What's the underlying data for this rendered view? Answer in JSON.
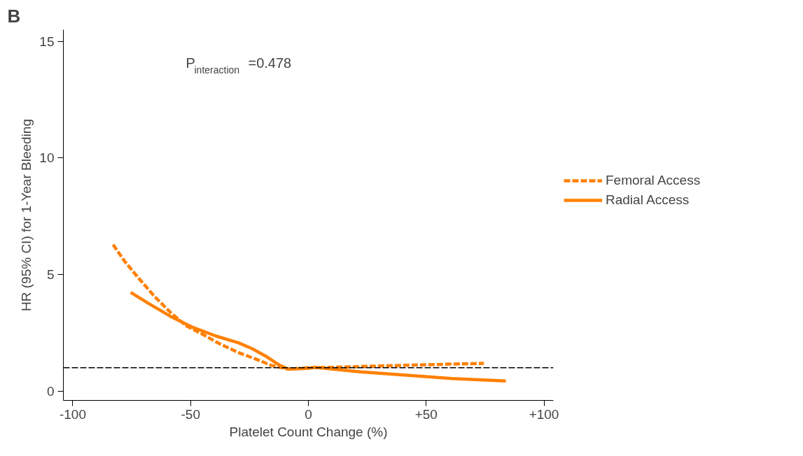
{
  "chart_data": {
    "type": "line",
    "title": "B",
    "xlabel": "Platelet Count Change (%)",
    "ylabel": "HR (95% CI) for 1-Year Bleeding",
    "annotations": [
      "P$_{interaction}$=0.478"
    ],
    "series": [
      {
        "name": "Femoral Access",
        "color": "#ff8000",
        "line_style": "dashed",
        "x": [
          -82.9,
          -78,
          -72.2,
          -65.3,
          -58.6,
          -52,
          -45,
          -37.5,
          -29.7,
          -21.9,
          -16,
          -8.5,
          0,
          10.9,
          41.8,
          74.5
        ],
        "values": [
          6.28,
          5.57,
          4.86,
          4.06,
          3.38,
          2.81,
          2.44,
          2.02,
          1.65,
          1.36,
          1.11,
          0.94,
          1.0,
          1.02,
          1.11,
          1.19
        ]
      },
      {
        "name": "Radial Access",
        "color": "#ff8000",
        "line_style": "solid",
        "x": [
          -75.4,
          -68.2,
          -58.6,
          -49,
          -39.2,
          -29.7,
          -23.9,
          -18.1,
          -12.3,
          -8.5,
          -0.7,
          3,
          22.4,
          41.8,
          61,
          83.8
        ],
        "values": [
          4.23,
          3.78,
          3.21,
          2.73,
          2.36,
          2.07,
          1.82,
          1.5,
          1.11,
          0.94,
          0.97,
          1.02,
          0.82,
          0.68,
          0.54,
          0.43
        ]
      }
    ],
    "ref_lines": [
      {
        "axis": "y",
        "value": 1,
        "color": "#000000",
        "line_style": "dashed"
      }
    ],
    "xlim": [
      -104,
      104
    ],
    "ylim": [
      -0.4,
      15.5
    ],
    "xticks": [
      -100,
      -50,
      0,
      {
        "value": 50,
        "label": "+50"
      },
      {
        "value": 100,
        "label": "+100"
      }
    ],
    "yticks": [
      0,
      5,
      10,
      15
    ],
    "grid": false,
    "legend": "right"
  }
}
